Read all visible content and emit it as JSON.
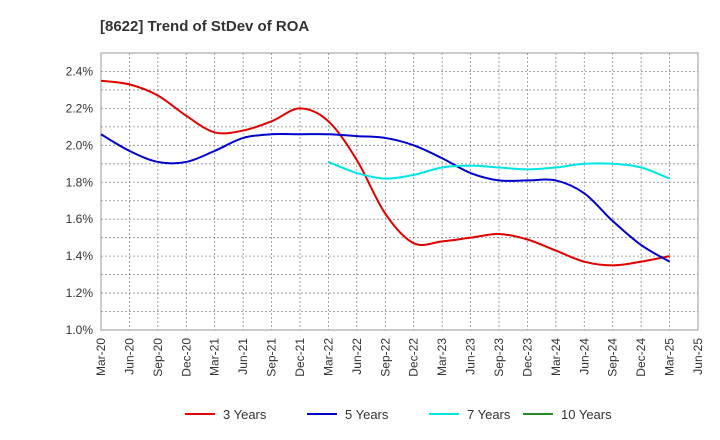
{
  "chart_data": {
    "type": "line",
    "title": "[8622]  Trend of StDev of ROA",
    "xlabel": "",
    "ylabel": "",
    "grid": true,
    "legend_position": "bottom",
    "x_tick_labels": [
      "Mar-20",
      "Jun-20",
      "Sep-20",
      "Dec-20",
      "Mar-21",
      "Jun-21",
      "Sep-21",
      "Dec-21",
      "Mar-22",
      "Jun-22",
      "Sep-22",
      "Dec-22",
      "Mar-23",
      "Jun-23",
      "Sep-23",
      "Dec-23",
      "Mar-24",
      "Jun-24",
      "Sep-24",
      "Dec-24",
      "Mar-25",
      "Jun-25"
    ],
    "y_tick_labels": [
      "1.0%",
      "1.2%",
      "1.4%",
      "1.6%",
      "1.8%",
      "2.0%",
      "2.2%",
      "2.4%"
    ],
    "ylim": [
      1.0,
      2.5
    ],
    "series": [
      {
        "name": "3 Years",
        "color": "#e00000",
        "x": [
          "Mar-20",
          "Jun-20",
          "Sep-20",
          "Dec-20",
          "Mar-21",
          "Jun-21",
          "Sep-21",
          "Dec-21",
          "Mar-22",
          "Jun-22",
          "Sep-22",
          "Dec-22",
          "Mar-23",
          "Jun-23",
          "Sep-23",
          "Dec-23",
          "Mar-24",
          "Jun-24",
          "Sep-24",
          "Dec-24",
          "Mar-25"
        ],
        "values": [
          2.35,
          2.33,
          2.27,
          2.16,
          2.07,
          2.08,
          2.13,
          2.2,
          2.13,
          1.92,
          1.63,
          1.47,
          1.48,
          1.5,
          1.52,
          1.49,
          1.43,
          1.37,
          1.35,
          1.37,
          1.4
        ]
      },
      {
        "name": "5 Years",
        "color": "#0000cc",
        "x": [
          "Mar-20",
          "Jun-20",
          "Sep-20",
          "Dec-20",
          "Mar-21",
          "Jun-21",
          "Sep-21",
          "Dec-21",
          "Mar-22",
          "Jun-22",
          "Sep-22",
          "Dec-22",
          "Mar-23",
          "Jun-23",
          "Sep-23",
          "Dec-23",
          "Mar-24",
          "Jun-24",
          "Sep-24",
          "Dec-24",
          "Mar-25"
        ],
        "values": [
          2.06,
          1.97,
          1.91,
          1.91,
          1.97,
          2.04,
          2.06,
          2.06,
          2.06,
          2.05,
          2.04,
          2.0,
          1.93,
          1.85,
          1.81,
          1.81,
          1.81,
          1.74,
          1.59,
          1.46,
          1.37
        ]
      },
      {
        "name": "7 Years",
        "color": "#00e5e5",
        "x": [
          "Mar-22",
          "Jun-22",
          "Sep-22",
          "Dec-22",
          "Mar-23",
          "Jun-23",
          "Sep-23",
          "Dec-23",
          "Mar-24",
          "Jun-24",
          "Sep-24",
          "Dec-24",
          "Mar-25"
        ],
        "values": [
          1.91,
          1.85,
          1.82,
          1.84,
          1.88,
          1.89,
          1.88,
          1.87,
          1.88,
          1.9,
          1.9,
          1.88,
          1.82
        ]
      },
      {
        "name": "10 Years",
        "color": "#228b22",
        "x": [],
        "values": []
      }
    ]
  }
}
